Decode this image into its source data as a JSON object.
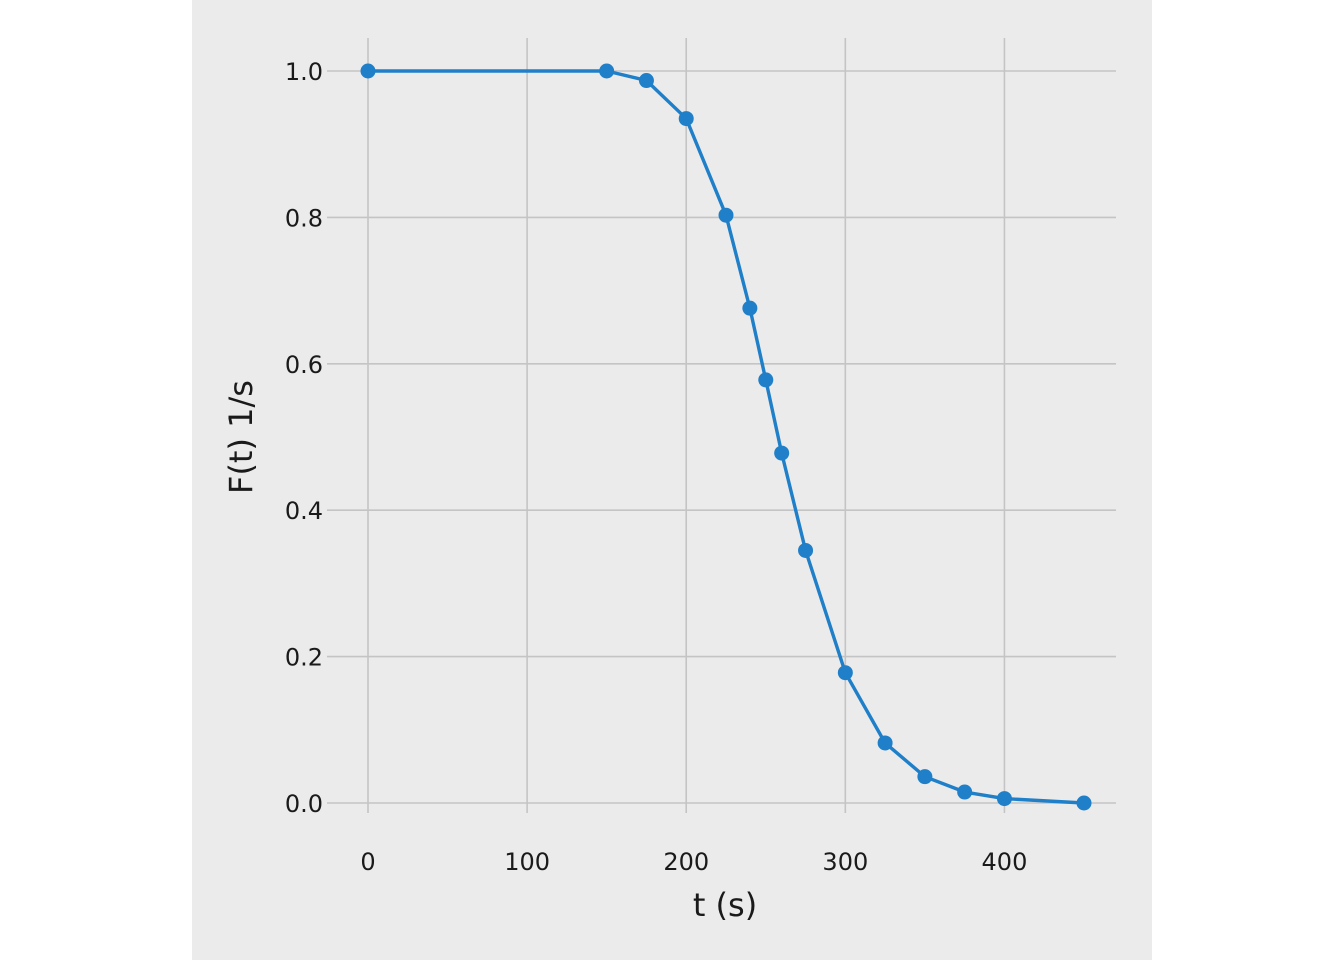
{
  "chart_data": {
    "type": "line",
    "title": "",
    "xlabel": "t (s)",
    "ylabel": "F(t) 1/s",
    "xlim": [
      0,
      450
    ],
    "ylim": [
      0,
      1.0
    ],
    "xticks": [
      0,
      100,
      200,
      300,
      400
    ],
    "yticks": [
      0.0,
      0.2,
      0.4,
      0.6,
      0.8,
      1.0
    ],
    "xtick_labels": [
      "0",
      "100",
      "200",
      "300",
      "400"
    ],
    "ytick_labels": [
      "0.0",
      "0.2",
      "0.4",
      "0.6",
      "0.8",
      "1.0"
    ],
    "grid": true,
    "marker": "circle",
    "series": [
      {
        "color": "#1f7fc8",
        "x": [
          0,
          150,
          175,
          200,
          225,
          240,
          250,
          260,
          275,
          300,
          325,
          350,
          375,
          400,
          450
        ],
        "y": [
          1.0,
          1.0,
          0.987,
          0.935,
          0.803,
          0.676,
          0.578,
          0.478,
          0.345,
          0.178,
          0.082,
          0.036,
          0.015,
          0.006,
          0.0
        ]
      }
    ]
  }
}
